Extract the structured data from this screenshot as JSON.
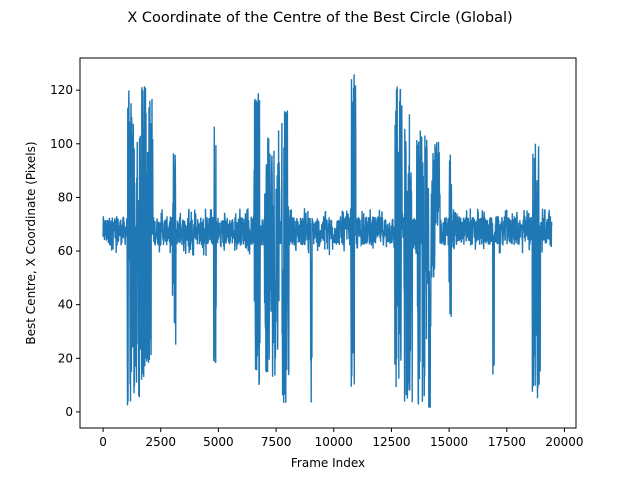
{
  "chart_data": {
    "type": "line",
    "title": "X Coordinate of the Centre of the Best Circle (Global)",
    "xlabel": "Frame Index",
    "ylabel": "Best Centre, X Coordinate (Pixels)",
    "xlim": [
      -1000,
      20500
    ],
    "ylim": [
      -6,
      132
    ],
    "x_ticks": [
      0,
      2500,
      5000,
      7500,
      10000,
      12500,
      15000,
      17500,
      20000
    ],
    "y_ticks": [
      0,
      20,
      40,
      60,
      80,
      100,
      120
    ],
    "grid": false,
    "legend": "none",
    "series": [
      {
        "color": "#1f77b4",
        "baseline_band": [
          61,
          75
        ],
        "x_range": [
          0,
          19450
        ],
        "bursts": [
          {
            "start": 1050,
            "end": 1300,
            "min": 0,
            "max": 121
          },
          {
            "start": 1300,
            "end": 1600,
            "min": 5,
            "max": 108
          },
          {
            "start": 1600,
            "end": 1850,
            "min": 8,
            "max": 122
          },
          {
            "start": 1850,
            "end": 2150,
            "min": 18,
            "max": 120
          },
          {
            "start": 3000,
            "end": 3150,
            "min": 20,
            "max": 100
          },
          {
            "start": 4800,
            "end": 4900,
            "min": 15,
            "max": 115
          },
          {
            "start": 6550,
            "end": 6800,
            "min": 3,
            "max": 120
          },
          {
            "start": 7000,
            "end": 7650,
            "min": 13,
            "max": 105
          },
          {
            "start": 7750,
            "end": 8050,
            "min": 2,
            "max": 113
          },
          {
            "start": 9000,
            "end": 9050,
            "min": 3,
            "max": 65
          },
          {
            "start": 10750,
            "end": 10950,
            "min": 9,
            "max": 126
          },
          {
            "start": 12650,
            "end": 12950,
            "min": 7,
            "max": 124
          },
          {
            "start": 13050,
            "end": 13400,
            "min": 2,
            "max": 116
          },
          {
            "start": 13600,
            "end": 14200,
            "min": 1,
            "max": 106
          },
          {
            "start": 14200,
            "end": 14600,
            "min": 50,
            "max": 101
          },
          {
            "start": 15000,
            "end": 15100,
            "min": 30,
            "max": 100
          },
          {
            "start": 16900,
            "end": 16950,
            "min": 1,
            "max": 68
          },
          {
            "start": 18600,
            "end": 18950,
            "min": 5,
            "max": 101
          }
        ]
      }
    ]
  }
}
